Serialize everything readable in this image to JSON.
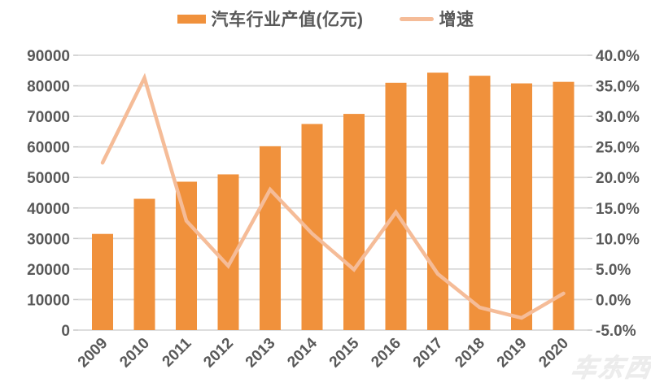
{
  "watermark": {
    "text": "车东西"
  },
  "chart_data": {
    "type": "bar+line",
    "categories": [
      "2009",
      "2010",
      "2011",
      "2012",
      "2013",
      "2014",
      "2015",
      "2016",
      "2017",
      "2018",
      "2019",
      "2020"
    ],
    "series": [
      {
        "name": "汽车行业产值(亿元)",
        "type": "bar",
        "axis": "left",
        "unit": "亿元",
        "color": "#F0913C",
        "values": [
          31500,
          43000,
          48600,
          51000,
          60200,
          67500,
          70800,
          81000,
          84300,
          83300,
          80800,
          81300
        ]
      },
      {
        "name": "增速",
        "type": "line",
        "axis": "right",
        "unit": "%",
        "color": "#F5BC98",
        "values": [
          22.4,
          36.3,
          12.9,
          5.5,
          18.0,
          10.8,
          4.9,
          14.3,
          4.2,
          -1.3,
          -3.0,
          1.0
        ]
      }
    ],
    "left_axis": {
      "min": 0,
      "max": 90000,
      "step": 10000,
      "tick_labels": [
        "0",
        "10000",
        "20000",
        "30000",
        "40000",
        "50000",
        "60000",
        "70000",
        "80000",
        "90000"
      ]
    },
    "right_axis": {
      "min": -5,
      "max": 40,
      "step": 5,
      "tick_labels": [
        "-5.0%",
        "0.0%",
        "5.0%",
        "10.0%",
        "15.0%",
        "20.0%",
        "25.0%",
        "30.0%",
        "35.0%",
        "40.0%"
      ]
    },
    "grid": true,
    "legend_position": "top-center",
    "colors": {
      "grid": "#d9d9d9",
      "tick_text": "#595959",
      "axis_tick": "#c9c9c9"
    }
  }
}
